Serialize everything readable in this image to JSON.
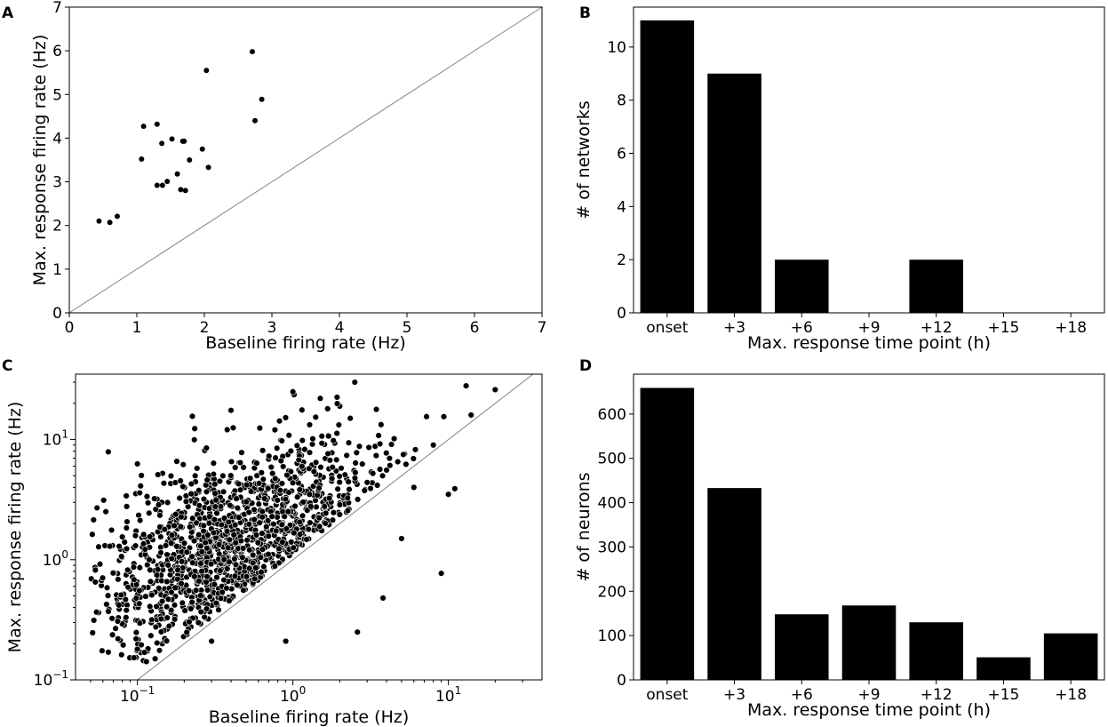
{
  "chart_data": [
    {
      "panel": "A",
      "type": "scatter",
      "title": "",
      "xlabel": "Baseline firing rate (Hz)",
      "ylabel": "Max. response firing rate (Hz)",
      "xlim": [
        0,
        7
      ],
      "ylim": [
        0,
        7
      ],
      "xscale": "linear",
      "yscale": "linear",
      "xticks": [
        0,
        1,
        2,
        3,
        4,
        5,
        6,
        7
      ],
      "xtick_labels": [
        "0",
        "1",
        "2",
        "3",
        "4",
        "5",
        "6",
        "7"
      ],
      "yticks": [
        0,
        1,
        2,
        3,
        4,
        5,
        6,
        7
      ],
      "ytick_labels": [
        "0",
        "1",
        "2",
        "3",
        "4",
        "5",
        "6",
        "7"
      ],
      "identity_line": true,
      "points": [
        [
          0.44,
          2.1
        ],
        [
          0.6,
          2.07
        ],
        [
          0.71,
          2.21
        ],
        [
          1.07,
          3.52
        ],
        [
          1.1,
          4.27
        ],
        [
          1.3,
          4.32
        ],
        [
          1.3,
          2.92
        ],
        [
          1.37,
          3.88
        ],
        [
          1.38,
          2.92
        ],
        [
          1.45,
          3.01
        ],
        [
          1.52,
          3.98
        ],
        [
          1.6,
          3.18
        ],
        [
          1.65,
          2.82
        ],
        [
          1.68,
          3.93
        ],
        [
          1.7,
          3.93
        ],
        [
          1.72,
          2.8
        ],
        [
          1.78,
          3.5
        ],
        [
          1.97,
          3.75
        ],
        [
          2.03,
          5.55
        ],
        [
          2.06,
          3.33
        ],
        [
          2.71,
          5.98
        ],
        [
          2.75,
          4.4
        ],
        [
          2.85,
          4.89
        ]
      ]
    },
    {
      "panel": "B",
      "type": "bar",
      "title": "",
      "xlabel": "Max. response time point (h)",
      "ylabel": "# of networks",
      "categories": [
        "onset",
        "+3",
        "+6",
        "+9",
        "+12",
        "+15",
        "+18"
      ],
      "values": [
        11,
        9,
        2,
        0,
        2,
        0,
        0
      ],
      "ylim": [
        0,
        11.5
      ],
      "yticks": [
        0,
        2,
        4,
        6,
        8,
        10
      ],
      "ytick_labels": [
        "0",
        "2",
        "4",
        "6",
        "8",
        "10"
      ]
    },
    {
      "panel": "C",
      "type": "scatter",
      "title": "",
      "xlabel": "Baseline firing rate (Hz)",
      "ylabel": "Max. response firing rate (Hz)",
      "xscale": "log",
      "yscale": "log",
      "xlim": [
        0.04,
        40
      ],
      "ylim": [
        0.1,
        35
      ],
      "xticks": [
        0.1,
        1,
        10
      ],
      "xtick_labels": [
        [
          "10",
          "−1"
        ],
        [
          "10",
          "0"
        ],
        [
          "10",
          "1"
        ]
      ],
      "yticks": [
        0.1,
        1,
        10
      ],
      "ytick_labels": [
        [
          "10",
          "−1"
        ],
        [
          "10",
          "0"
        ],
        [
          "10",
          "1"
        ]
      ],
      "identity_line": true,
      "n_points_approx": 1400,
      "cloud": {
        "log10_baseline_mean": -0.45,
        "log10_baseline_sd": 0.45,
        "log10_response_intercept": 0.37,
        "log10_response_slope": 0.55,
        "log10_response_sd": 0.36
      },
      "points": [
        [
          0.055,
          2.7
        ],
        [
          0.065,
          0.17
        ],
        [
          0.065,
          7.9
        ],
        [
          0.075,
          0.22
        ],
        [
          0.085,
          0.38
        ],
        [
          0.1,
          0.18
        ],
        [
          0.13,
          0.15
        ],
        [
          0.16,
          0.28
        ],
        [
          0.3,
          0.21
        ],
        [
          0.4,
          17.5
        ],
        [
          0.9,
          0.21
        ],
        [
          1.0,
          25.0
        ],
        [
          1.5,
          22.0
        ],
        [
          2.5,
          30.0
        ],
        [
          2.6,
          0.25
        ],
        [
          3.8,
          0.48
        ],
        [
          9.0,
          0.77
        ],
        [
          10.0,
          3.5
        ],
        [
          11.0,
          3.9
        ],
        [
          13.0,
          28.0
        ],
        [
          14.0,
          16.0
        ],
        [
          20.0,
          26.0
        ],
        [
          8.0,
          9.0
        ],
        [
          6.0,
          4.0
        ],
        [
          5.0,
          1.5
        ]
      ]
    },
    {
      "panel": "D",
      "type": "bar",
      "title": "",
      "xlabel": "Max. response time point (h)",
      "ylabel": "# of neurons",
      "categories": [
        "onset",
        "+3",
        "+6",
        "+9",
        "+12",
        "+15",
        "+18"
      ],
      "values": [
        659,
        433,
        148,
        168,
        130,
        51,
        105
      ],
      "ylim": [
        0,
        690
      ],
      "yticks": [
        0,
        100,
        200,
        300,
        400,
        500,
        600
      ],
      "ytick_labels": [
        "0",
        "100",
        "200",
        "300",
        "400",
        "500",
        "600"
      ]
    }
  ]
}
